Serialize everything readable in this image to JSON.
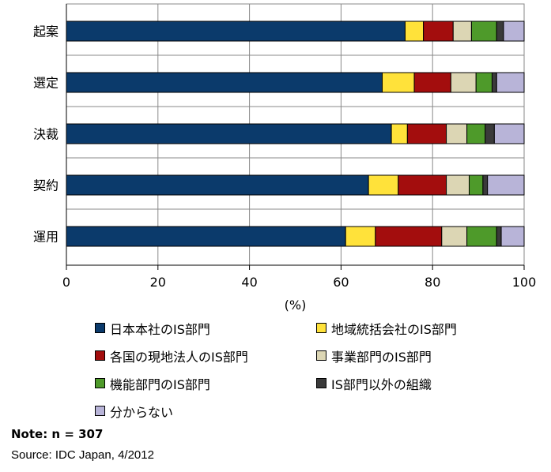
{
  "chart_data": {
    "type": "bar",
    "orientation": "horizontal",
    "stacked": true,
    "title": "",
    "xlabel": "(%)",
    "ylabel": "",
    "xlim": [
      0,
      100
    ],
    "xticks": [
      "0",
      "20",
      "40",
      "60",
      "80",
      "100"
    ],
    "grid": true,
    "legend_position": "bottom",
    "categories": [
      "起案",
      "選定",
      "決裁",
      "契約",
      "運用"
    ],
    "series": [
      {
        "name": "日本本社のIS部門",
        "color": "#0b3a6b",
        "values": [
          74,
          69,
          71,
          66,
          61
        ]
      },
      {
        "name": "地域統括会社のIS部門",
        "color": "#ffe23a",
        "values": [
          4,
          7,
          3.5,
          6.5,
          6.5
        ]
      },
      {
        "name": "各国の現地法人のIS部門",
        "color": "#a30d0d",
        "values": [
          6.5,
          8,
          8.5,
          10.5,
          14.5
        ]
      },
      {
        "name": "事業部門のIS部門",
        "color": "#dcd6b4",
        "values": [
          4,
          5.5,
          4.5,
          5,
          5.5
        ]
      },
      {
        "name": "機能部門のIS部門",
        "color": "#4e9a2a",
        "values": [
          5.5,
          3.5,
          4,
          3,
          6.5
        ]
      },
      {
        "name": "IS部門以外の組織",
        "color": "#3a3a3a",
        "values": [
          1.5,
          1,
          2,
          1,
          1
        ]
      },
      {
        "name": "分からない",
        "color": "#b8b4d8",
        "values": [
          4.5,
          6,
          6.5,
          8,
          5
        ]
      }
    ]
  },
  "note": "Note: n = 307",
  "source": "Source: IDC Japan, 4/2012"
}
